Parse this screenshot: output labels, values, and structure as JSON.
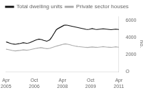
{
  "chart_data": {
    "type": "line",
    "ylabel": "no.",
    "categories": [
      "Apr\n2005",
      null,
      null,
      null,
      null,
      null,
      null,
      null,
      null,
      null,
      null,
      null,
      null,
      null,
      null,
      null,
      null,
      null,
      "Oct\n2006",
      null,
      null,
      null,
      null,
      null,
      null,
      null,
      null,
      null,
      null,
      null,
      null,
      null,
      null,
      null,
      null,
      null,
      "Apr\n2008",
      null,
      null,
      null,
      null,
      null,
      null,
      null,
      null,
      null,
      null,
      null,
      null,
      null,
      null,
      null,
      null,
      null,
      "Oct\n2009",
      null,
      null,
      null,
      null,
      null,
      null,
      null,
      null,
      null,
      null,
      null,
      null,
      null,
      null,
      null,
      null,
      null,
      "Apr\n2011"
    ],
    "series": [
      {
        "name": "Total dwelling units",
        "color": "#111111",
        "values": [
          3500,
          3450,
          3380,
          3320,
          3280,
          3250,
          3220,
          3260,
          3290,
          3320,
          3360,
          3400,
          3380,
          3340,
          3360,
          3400,
          3480,
          3560,
          3640,
          3720,
          3780,
          3820,
          3800,
          3760,
          3680,
          3640,
          3580,
          3660,
          3760,
          4000,
          4300,
          4600,
          4900,
          5050,
          5150,
          5250,
          5350,
          5450,
          5480,
          5460,
          5420,
          5380,
          5340,
          5300,
          5260,
          5220,
          5180,
          5140,
          5100,
          5060,
          5020,
          4980,
          4960,
          4980,
          5020,
          5060,
          5020,
          4980,
          4960,
          4980,
          5000,
          5020,
          5040,
          5020,
          5000,
          4980,
          4960,
          4940,
          4960,
          4980,
          5000,
          4980,
          4960
        ]
      },
      {
        "name": "Private sector houses",
        "color": "#aaaaaa",
        "values": [
          2650,
          2620,
          2580,
          2540,
          2500,
          2470,
          2450,
          2470,
          2490,
          2510,
          2540,
          2570,
          2550,
          2530,
          2550,
          2580,
          2620,
          2660,
          2700,
          2740,
          2770,
          2800,
          2820,
          2810,
          2770,
          2740,
          2710,
          2730,
          2760,
          2820,
          2880,
          2940,
          3000,
          3050,
          3100,
          3150,
          3200,
          3250,
          3270,
          3240,
          3200,
          3160,
          3100,
          3060,
          3020,
          2990,
          2960,
          2940,
          2920,
          2900,
          2880,
          2860,
          2850,
          2870,
          2890,
          2910,
          2890,
          2870,
          2860,
          2880,
          2900,
          2920,
          2940,
          2920,
          2900,
          2880,
          2870,
          2860,
          2880,
          2900,
          2920,
          2900,
          2880
        ]
      }
    ],
    "ylim": [
      0,
      6500
    ],
    "yticks": [
      {
        "value": 0,
        "label": "O"
      },
      2000,
      4000,
      6000
    ],
    "grid": false,
    "legend": "upper left"
  }
}
